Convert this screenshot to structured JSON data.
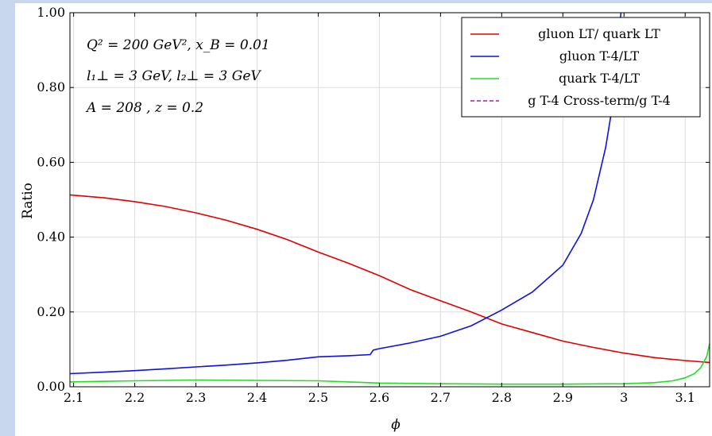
{
  "chart_data": {
    "type": "line",
    "xlabel": "ϕ",
    "ylabel": "Ratio",
    "xlim": [
      2.094,
      3.14
    ],
    "ylim": [
      0.0,
      1.0
    ],
    "x_ticks": [
      2.1,
      2.2,
      2.3,
      2.4,
      2.5,
      2.6,
      2.7,
      2.8,
      2.9,
      3.0,
      3.1
    ],
    "x_tick_labels": [
      "2.1",
      "2.2",
      "2.3",
      "2.4",
      "2.5",
      "2.6",
      "2.7",
      "2.8",
      "2.9",
      "3",
      "3.1"
    ],
    "y_ticks": [
      0.0,
      0.2,
      0.4,
      0.6,
      0.8,
      1.0
    ],
    "y_tick_labels": [
      "0.00",
      "0.20",
      "0.40",
      "0.60",
      "0.80",
      "1.00"
    ],
    "grid": true,
    "legend_position": "top-right",
    "annotations": [
      "Q² = 200 GeV², x_B = 0.01",
      "l₁⊥ = 3 GeV, l₂⊥ = 3 GeV",
      "A = 208 ,  z = 0.2"
    ],
    "series": [
      {
        "name": "gluon LT/ quark LT",
        "color": "#e00000",
        "style": "solid",
        "x": [
          2.094,
          2.15,
          2.2,
          2.25,
          2.3,
          2.35,
          2.4,
          2.45,
          2.5,
          2.55,
          2.6,
          2.65,
          2.7,
          2.75,
          2.8,
          2.85,
          2.9,
          2.95,
          3.0,
          3.05,
          3.1,
          3.14
        ],
        "y": [
          0.513,
          0.505,
          0.495,
          0.482,
          0.465,
          0.445,
          0.421,
          0.393,
          0.36,
          0.33,
          0.297,
          0.26,
          0.23,
          0.2,
          0.168,
          0.145,
          0.122,
          0.105,
          0.09,
          0.078,
          0.07,
          0.065
        ]
      },
      {
        "name": "gluon T-4/LT",
        "color": "#1010e0",
        "style": "solid",
        "x": [
          2.094,
          2.15,
          2.2,
          2.25,
          2.3,
          2.35,
          2.4,
          2.45,
          2.5,
          2.55,
          2.585,
          2.59,
          2.6,
          2.65,
          2.7,
          2.75,
          2.8,
          2.85,
          2.9,
          2.93,
          2.95,
          2.97,
          2.985,
          2.995
        ],
        "y": [
          0.035,
          0.039,
          0.043,
          0.048,
          0.053,
          0.058,
          0.064,
          0.071,
          0.08,
          0.083,
          0.086,
          0.098,
          0.102,
          0.117,
          0.135,
          0.163,
          0.205,
          0.253,
          0.325,
          0.41,
          0.5,
          0.64,
          0.79,
          1.0
        ]
      },
      {
        "name": "quark T-4/LT",
        "color": "#20e020",
        "style": "solid",
        "x": [
          2.094,
          2.2,
          2.3,
          2.4,
          2.5,
          2.55,
          2.6,
          2.7,
          2.8,
          2.9,
          3.0,
          3.05,
          3.08,
          3.1,
          3.115,
          3.125,
          3.135,
          3.14
        ],
        "y": [
          0.013,
          0.016,
          0.018,
          0.017,
          0.016,
          0.013,
          0.01,
          0.008,
          0.007,
          0.007,
          0.008,
          0.011,
          0.016,
          0.024,
          0.035,
          0.05,
          0.08,
          0.115
        ]
      },
      {
        "name": "g T-4 Cross-term/g T-4",
        "color": "#a020a0",
        "style": "dashed",
        "x": [],
        "y": []
      }
    ]
  },
  "theme": {
    "grid_color": "#dddddd",
    "axis_color": "#000000",
    "band_color": "#c9d7ee"
  }
}
